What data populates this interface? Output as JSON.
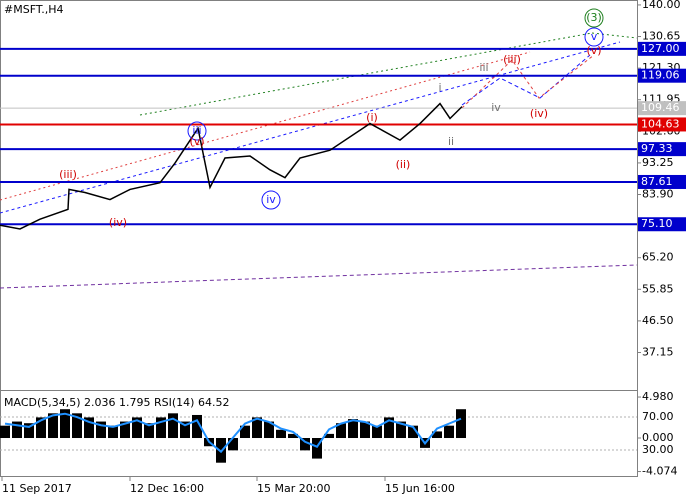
{
  "chart_data": [
    {
      "type": "line",
      "title": "#MSFT.,H4",
      "x": [
        0,
        20,
        40,
        68,
        69,
        85,
        110,
        130,
        160,
        175,
        198,
        210,
        225,
        250,
        270,
        285,
        300,
        330,
        370,
        400,
        420,
        440,
        450,
        462
      ],
      "series": [
        {
          "color": "#000000",
          "values": [
            74.8,
            73.7,
            76.6,
            79.5,
            85.4,
            84.5,
            82.4,
            85.4,
            87.4,
            93.2,
            103.5,
            86.0,
            94.7,
            95.3,
            91.2,
            88.9,
            94.7,
            97.0,
            104.9,
            100.0,
            104.9,
            110.8,
            106.4,
            109.9
          ]
        }
      ],
      "xlim": [
        0,
        637
      ],
      "xticks": [
        {
          "value": 2,
          "label": "11 Sep 2017"
        },
        {
          "value": 130,
          "label": "12 Dec 16:00"
        },
        {
          "value": 257,
          "label": "15 Mar 20:00"
        },
        {
          "value": 385,
          "label": "15 Jun 16:00"
        }
      ],
      "ylim": [
        26.05,
        141.46
      ],
      "yticks": [
        {
          "value": 140,
          "label": "140.00"
        },
        {
          "value": 130.65,
          "label": "130.65"
        },
        {
          "value": 121.3,
          "label": "121.30"
        },
        {
          "value": 111.95,
          "label": "111.95"
        },
        {
          "value": 102.6,
          "label": "102.60"
        },
        {
          "value": 93.25,
          "label": "93.25"
        },
        {
          "value": 83.9,
          "label": "83.90"
        },
        {
          "value": 65.2,
          "label": "65.20"
        },
        {
          "value": 55.85,
          "label": "55.85"
        },
        {
          "value": 46.5,
          "label": "46.50"
        },
        {
          "value": 37.15,
          "label": "37.15"
        }
      ],
      "levels": [
        {
          "value": 127,
          "label": "127.00",
          "color": "#0000cc"
        },
        {
          "value": 119.06,
          "label": "119.06",
          "color": "#0000cc"
        },
        {
          "value": 109.46,
          "label": "109.46",
          "color": "#c0c0c0"
        },
        {
          "value": 104.63,
          "label": "104.63",
          "color": "#e00000"
        },
        {
          "value": 97.33,
          "label": "97.33",
          "color": "#0000cc"
        },
        {
          "value": 87.61,
          "label": "87.61",
          "color": "#0000cc"
        },
        {
          "value": 75.1,
          "label": "75.10",
          "color": "#0000cc"
        }
      ],
      "annotations": [
        {
          "text": "(iii)",
          "color": "#d00000"
        },
        {
          "text": "(iv)",
          "color": "#d00000"
        },
        {
          "text": "iii",
          "color": "#1a1aff",
          "circled": true
        },
        {
          "text": "(v)",
          "color": "#d00000"
        },
        {
          "text": "iv",
          "color": "#1a1aff",
          "circled": true
        },
        {
          "text": "(i)",
          "color": "#d00000"
        },
        {
          "text": "(ii)",
          "color": "#d00000"
        },
        {
          "text": "i",
          "color": "#707070"
        },
        {
          "text": "ii",
          "color": "#707070"
        },
        {
          "text": "iii",
          "color": "#707070"
        },
        {
          "text": "iv",
          "color": "#707070"
        },
        {
          "text": "(iii)",
          "color": "#d00000"
        },
        {
          "text": "(iv)",
          "color": "#d00000"
        },
        {
          "text": "(3)",
          "color": "#208020",
          "circled": true
        },
        {
          "text": "v",
          "color": "#1a1aff",
          "circled": true
        },
        {
          "text": "(v)",
          "color": "#d00000"
        }
      ]
    },
    {
      "type": "macd",
      "title": "MACD(5,34,5) 2.036 1.795 RSI(14) 64.52",
      "x": [
        5,
        17,
        29,
        41,
        53,
        65,
        77,
        89,
        101,
        113,
        125,
        137,
        149,
        161,
        173,
        185,
        197,
        209,
        221,
        233,
        245,
        257,
        269,
        281,
        293,
        305,
        317,
        329,
        341,
        353,
        365,
        377,
        389,
        401,
        413,
        425,
        437,
        449,
        461
      ],
      "series": [
        {
          "color": "#000000",
          "values": [
            1.5,
            2,
            1.8,
            2.5,
            3,
            3.5,
            3,
            2.5,
            2,
            1.5,
            2,
            2.5,
            1.8,
            2.5,
            3,
            2,
            2.8,
            -1,
            -3,
            -1.5,
            1.5,
            2.5,
            2,
            1,
            0.5,
            -1.5,
            -2.5,
            0.5,
            1.8,
            2.3,
            2,
            1.5,
            2.5,
            2,
            1.5,
            -1.2,
            0.8,
            1.5,
            3.5
          ]
        },
        {
          "color": "#1e90ff",
          "axis": "y2",
          "values": [
            62,
            60,
            58,
            66,
            72,
            74,
            70,
            64,
            60,
            58,
            62,
            66,
            60,
            64,
            68,
            60,
            66,
            40,
            28,
            45,
            62,
            68,
            64,
            56,
            52,
            40,
            34,
            55,
            62,
            66,
            64,
            58,
            66,
            62,
            58,
            38,
            56,
            62,
            68
          ]
        }
      ],
      "ylim": [
        -4.86,
        5.47
      ],
      "yticks": [
        {
          "value": 4.98,
          "label": "4.980"
        },
        {
          "value": 0,
          "label": "0.000"
        },
        {
          "value": -4.074,
          "label": "-4.074"
        }
      ],
      "y2lim": [
        -3.9,
        99.1
      ],
      "y2ticks": [
        {
          "value": 70,
          "label": "70.00"
        },
        {
          "value": 30,
          "label": "30.00"
        }
      ]
    }
  ]
}
